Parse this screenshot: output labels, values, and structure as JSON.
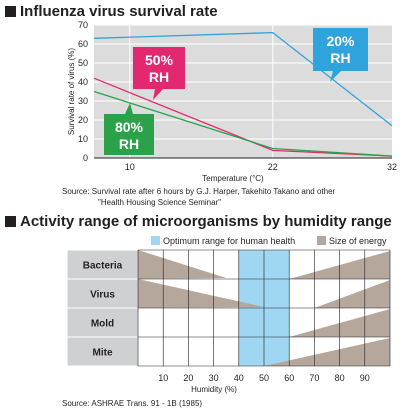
{
  "chart_data": [
    {
      "type": "line",
      "title": "Influenza virus survival rate",
      "xlabel": "Temperature (°C)",
      "ylabel": "Survival rate of virus (%)",
      "x_ticks": [
        "10",
        "22",
        "32"
      ],
      "y_ticks": [
        "0",
        "10",
        "20",
        "30",
        "40",
        "50",
        "60",
        "70"
      ],
      "xlim": [
        7,
        32
      ],
      "ylim": [
        0,
        70
      ],
      "grid": true,
      "series": [
        {
          "name": "20% RH",
          "label_lines": [
            "20%",
            "RH"
          ],
          "color": "#2ea3dc",
          "x": [
            7,
            22,
            32
          ],
          "y": [
            63,
            66,
            17
          ]
        },
        {
          "name": "50% RH",
          "label_lines": [
            "50%",
            "RH"
          ],
          "color": "#e2296f",
          "x": [
            7,
            22,
            32
          ],
          "y": [
            42,
            4,
            1
          ]
        },
        {
          "name": "80% RH",
          "label_lines": [
            "80%",
            "RH"
          ],
          "color": "#2ba24a",
          "x": [
            7,
            22,
            32
          ],
          "y": [
            35,
            5,
            1
          ]
        }
      ],
      "source_lines": [
        "Source: Survival rate after 6 hours by G.J. Harper, Takehito Takano and other",
        "\"Health Housing Science Seminar\""
      ]
    },
    {
      "type": "area",
      "title": "Activity range of microorganisms by humidity range",
      "xlabel": "Humidity (%)",
      "x_ticks": [
        "10",
        "20",
        "30",
        "40",
        "50",
        "60",
        "70",
        "80",
        "90"
      ],
      "xlim": [
        0,
        100
      ],
      "categories": [
        "Bacteria",
        "Virus",
        "Mold",
        "Mite"
      ],
      "optimum_range": [
        40,
        60
      ],
      "legend": [
        {
          "label": "Optimum range for human health",
          "color": "#9fd6f2"
        },
        {
          "label": "Size of energy",
          "color": "#b6a79c"
        }
      ],
      "energy_shapes": [
        {
          "category": "Bacteria",
          "left_wedge": [
            0,
            35
          ],
          "right_wedge": [
            60,
            100
          ]
        },
        {
          "category": "Virus",
          "left_wedge": [
            0,
            50
          ],
          "right_wedge": [
            70,
            100
          ]
        },
        {
          "category": "Mold",
          "right_wedge": [
            60,
            100
          ]
        },
        {
          "category": "Mite",
          "right_wedge": [
            50,
            100
          ]
        }
      ],
      "colors": {
        "optimum": "#9fd6f2",
        "energy": "#b6a79c",
        "category_bg": "#cfd0d1"
      },
      "source_lines": [
        "Source: ASHRAE Trans. 91 - 1B (1985)"
      ]
    }
  ]
}
